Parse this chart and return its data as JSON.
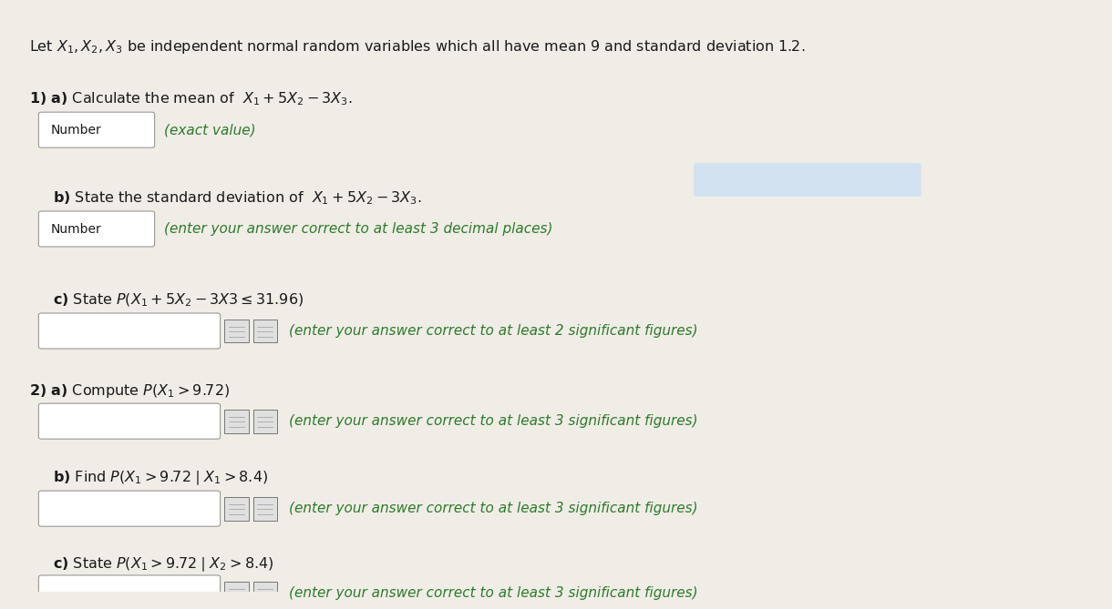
{
  "background_color": "#f0ede6",
  "text_color_black": "#1a1a1a",
  "text_color_green": "#2d7a2d",
  "highlight_color": "#c8dff5",
  "box_border_color": "#999999",
  "box_fill_color": "#ffffff",
  "icon_fill_color": "#e0e0e0",
  "icon_border_color": "#777777",
  "q1_bold": "1) a)",
  "q1_normal": " Calculate the mean of ",
  "q1_math": "$X_1 + 5X_2 - 3X_3$.",
  "q1b_bold": "b)",
  "q1b_normal": " State the standard deviation of ",
  "q1b_math": "$X_1 + 5X_2 - 3X_3$.",
  "q1c_bold": "c)",
  "q1c_normal": " State ",
  "q1c_math": "$P(X_1 + 5X_2 - 3X3 \\leq 31.96)$",
  "q2a_bold": "2) a)",
  "q2a_normal": " Compute ",
  "q2a_math": "$P(X_1 > 9.72)$",
  "q2b_bold": "b)",
  "q2b_normal": " Find ",
  "q2b_math": "$P(X_1 > 9.72 \\mid X_1 > 8.4)$",
  "q2c_bold": "c)",
  "q2c_normal": " State ",
  "q2c_math": "$P(X_1 > 9.72 \\mid X_2 > 8.4)$",
  "q1a_hint": "(exact value)",
  "q1b_hint": "(enter your answer correct to at least 3 decimal places)",
  "q1c_hint": "(enter your answer correct to at least 2 significant figures)",
  "q2a_hint": "(enter your answer correct to at least 3 significant figures)",
  "q2b_hint": "(enter your answer correct to at least 3 significant figures)",
  "q2c_hint": "(enter your answer correct to at least 3 significant figures)",
  "intro": "Let $X_1, X_2, X_3$ be independent normal random variables which all have mean 9 and standard deviation 1.2."
}
